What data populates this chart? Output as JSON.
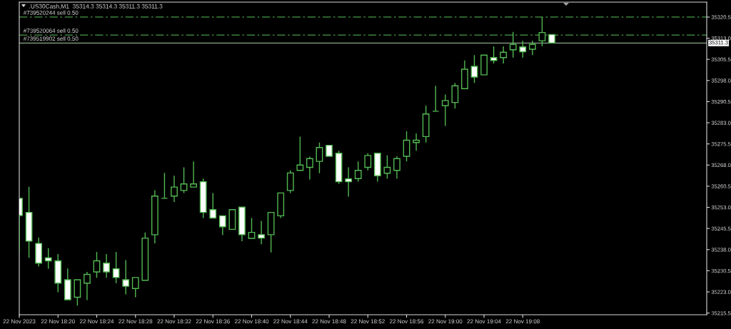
{
  "chart_data": {
    "type": "candlestick",
    "title": ".US30Cash,M1  35314.3 35314.3 35311.3 35311.3",
    "x": [
      "2023-11-22T18:16",
      "2023-11-22T18:17",
      "2023-11-22T18:18",
      "2023-11-22T18:19",
      "2023-11-22T18:20",
      "2023-11-22T18:21",
      "2023-11-22T18:22",
      "2023-11-22T18:23",
      "2023-11-22T18:24",
      "2023-11-22T18:25",
      "2023-11-22T18:26",
      "2023-11-22T18:27",
      "2023-11-22T18:28",
      "2023-11-22T18:29",
      "2023-11-22T18:30",
      "2023-11-22T18:31",
      "2023-11-22T18:32",
      "2023-11-22T18:33",
      "2023-11-22T18:34",
      "2023-11-22T18:35",
      "2023-11-22T18:36",
      "2023-11-22T18:37",
      "2023-11-22T18:38",
      "2023-11-22T18:39",
      "2023-11-22T18:40",
      "2023-11-22T18:41",
      "2023-11-22T18:42",
      "2023-11-22T18:43",
      "2023-11-22T18:44",
      "2023-11-22T18:45",
      "2023-11-22T18:46",
      "2023-11-22T18:47",
      "2023-11-22T18:48",
      "2023-11-22T18:49",
      "2023-11-22T18:50",
      "2023-11-22T18:51",
      "2023-11-22T18:52",
      "2023-11-22T18:53",
      "2023-11-22T18:54",
      "2023-11-22T18:55",
      "2023-11-22T18:56",
      "2023-11-22T18:57",
      "2023-11-22T18:58",
      "2023-11-22T18:59",
      "2023-11-22T19:00",
      "2023-11-22T19:01",
      "2023-11-22T19:02",
      "2023-11-22T19:03",
      "2023-11-22T19:04",
      "2023-11-22T19:05",
      "2023-11-22T19:06",
      "2023-11-22T19:07",
      "2023-11-22T19:08",
      "2023-11-22T19:09",
      "2023-11-22T19:10",
      "2023-11-22T19:11"
    ],
    "ohlc": [
      [
        35256.2,
        35256.2,
        35237.3,
        35250.1
      ],
      [
        35251.2,
        35260.3,
        35235.1,
        35241.0
      ],
      [
        35240.2,
        35242.3,
        35232.0,
        35233.2
      ],
      [
        35235.1,
        35238.5,
        35231.2,
        35234.0
      ],
      [
        35234.0,
        35236.4,
        35222.9,
        35226.1
      ],
      [
        35227.3,
        35231.3,
        35220.2,
        35220.2
      ],
      [
        35221.1,
        35227.3,
        35218.1,
        35227.3
      ],
      [
        35226.1,
        35230.1,
        35220.1,
        35229.2
      ],
      [
        35230.1,
        35237.2,
        35228.0,
        35234.0
      ],
      [
        35233.2,
        35236.4,
        35228.0,
        35230.1
      ],
      [
        35231.2,
        35237.2,
        35226.1,
        35228.1
      ],
      [
        35227.3,
        35234.3,
        35222.1,
        35225.0
      ],
      [
        35224.2,
        35228.1,
        35221.1,
        35228.1
      ],
      [
        35227.1,
        35244.1,
        35227.1,
        35242.1
      ],
      [
        35243.3,
        35259.1,
        35240.2,
        35257.0
      ],
      [
        35256.2,
        35265.2,
        35256.2,
        35256.2
      ],
      [
        35257.0,
        35264.2,
        35254.9,
        35260.2
      ],
      [
        35259.0,
        35267.2,
        35258.1,
        35261.3
      ],
      [
        35260.2,
        35269.3,
        35260.2,
        35261.3
      ],
      [
        35262.1,
        35263.2,
        35249.2,
        35251.2
      ],
      [
        35252.2,
        35258.1,
        35249.2,
        35249.2
      ],
      [
        35250.0,
        35250.0,
        35243.1,
        35246.1
      ],
      [
        35245.2,
        35252.2,
        35245.2,
        35252.2
      ],
      [
        35253.1,
        35253.1,
        35241.0,
        35243.3
      ],
      [
        35242.0,
        35249.2,
        35242.0,
        35244.1
      ],
      [
        35243.3,
        35248.2,
        35239.9,
        35242.1
      ],
      [
        35243.3,
        35251.2,
        35237.0,
        35251.2
      ],
      [
        35250.0,
        35258.1,
        35249.2,
        35258.1
      ],
      [
        35259.0,
        35266.1,
        35258.1,
        35265.2
      ],
      [
        35266.1,
        35278.1,
        35266.1,
        35268.0
      ],
      [
        35267.2,
        35271.0,
        35262.9,
        35270.3
      ],
      [
        35269.3,
        35276.0,
        35265.1,
        35274.2
      ],
      [
        35275.0,
        35275.0,
        35271.1,
        35271.1
      ],
      [
        35272.2,
        35273.1,
        35261.3,
        35262.1
      ],
      [
        35263.1,
        35267.2,
        35256.8,
        35262.1
      ],
      [
        35263.2,
        35269.3,
        35262.1,
        35266.1
      ],
      [
        35267.2,
        35272.2,
        35266.1,
        35271.4
      ],
      [
        35272.2,
        35272.2,
        35262.1,
        35264.2
      ],
      [
        35265.1,
        35271.4,
        35263.2,
        35267.2
      ],
      [
        35266.1,
        35271.1,
        35263.2,
        35270.3
      ],
      [
        35271.1,
        35280.0,
        35269.3,
        35276.8
      ],
      [
        35276.0,
        35279.2,
        35273.1,
        35276.8
      ],
      [
        35278.1,
        35289.1,
        35276.0,
        35286.1
      ],
      [
        35287.1,
        35296.1,
        35287.1,
        35287.1
      ],
      [
        35289.1,
        35293.0,
        35281.9,
        35290.9
      ],
      [
        35290.2,
        35297.1,
        35288.1,
        35296.1
      ],
      [
        35295.1,
        35305.1,
        35295.1,
        35302.0
      ],
      [
        35303.0,
        35307.0,
        35297.1,
        35299.2
      ],
      [
        35300.0,
        35307.0,
        35300.0,
        35307.0
      ],
      [
        35306.1,
        35310.1,
        35304.0,
        35305.1
      ],
      [
        35306.1,
        35310.1,
        35304.0,
        35308.0
      ],
      [
        35308.9,
        35315.2,
        35306.1,
        35310.8
      ],
      [
        35309.9,
        35312.1,
        35306.1,
        35308.2
      ],
      [
        35309.1,
        35312.1,
        35307.0,
        35310.8
      ],
      [
        35312.1,
        35320.5,
        35310.1,
        35315.0
      ],
      [
        35314.3,
        35314.3,
        35311.3,
        35311.3
      ]
    ],
    "color": "#52b852",
    "colors": [
      "#ffffff",
      "#ffffff",
      "#ffffff",
      "#ffffff",
      "#ffffff",
      "#ffffff",
      "#000000",
      "#000000",
      "#000000",
      "#ffffff",
      "#ffffff",
      "#ffffff",
      "#000000",
      "#000000",
      "#000000",
      "#52b852",
      "#000000",
      "#000000",
      "#000000",
      "#ffffff",
      "#ffffff",
      "#ffffff",
      "#000000",
      "#ffffff",
      "#000000",
      "#ffffff",
      "#000000",
      "#000000",
      "#000000",
      "#000000",
      "#000000",
      "#000000",
      "#ffffff",
      "#ffffff",
      "#ffffff",
      "#000000",
      "#000000",
      "#ffffff",
      "#000000",
      "#000000",
      "#000000",
      "#000000",
      "#000000",
      "#52b852",
      "#000000",
      "#000000",
      "#000000",
      "#ffffff",
      "#000000",
      "#ffffff",
      "#000000",
      "#000000",
      "#ffffff",
      "#000000",
      "#000000",
      "#ffffff"
    ],
    "xlim": [
      "2023-11-22T18:16",
      "2023-11-22T19:27"
    ],
    "xticks": [
      {
        "value": "2023-11-22T18:16",
        "label": "22 Nov 2023"
      },
      {
        "value": "2023-11-22T18:20",
        "label": "22 Nov 18:20"
      },
      {
        "value": "2023-11-22T18:24",
        "label": "22 Nov 18:24"
      },
      {
        "value": "2023-11-22T18:28",
        "label": "22 Nov 18:28"
      },
      {
        "value": "2023-11-22T18:32",
        "label": "22 Nov 18:32"
      },
      {
        "value": "2023-11-22T18:36",
        "label": "22 Nov 18:36"
      },
      {
        "value": "2023-11-22T18:40",
        "label": "22 Nov 18:40"
      },
      {
        "value": "2023-11-22T18:44",
        "label": "22 Nov 18:44"
      },
      {
        "value": "2023-11-22T18:48",
        "label": "22 Nov 18:48"
      },
      {
        "value": "2023-11-22T18:52",
        "label": "22 Nov 18:52"
      },
      {
        "value": "2023-11-22T18:56",
        "label": "22 Nov 18:56"
      },
      {
        "value": "2023-11-22T19:00",
        "label": "22 Nov 19:00"
      },
      {
        "value": "2023-11-22T19:04",
        "label": "22 Nov 19:04"
      },
      {
        "value": "2023-11-22T19:08",
        "label": "22 Nov 19:08"
      }
    ],
    "ylim": [
      35214.9,
      35325.8
    ],
    "yticks": [
      35215.5,
      {
        "value": 35223,
        "label": "35223.0"
      },
      35230.5,
      {
        "value": 35238,
        "label": "35238.0"
      },
      35245.5,
      {
        "value": 35253,
        "label": "35253.0"
      },
      35260.5,
      {
        "value": 35268,
        "label": "35268.0"
      },
      35275.5,
      {
        "value": 35283,
        "label": "35283.0"
      },
      35290.5,
      {
        "value": 35298,
        "label": "35298.0"
      },
      35305.5,
      {
        "value": 35313,
        "label": "35313.0"
      },
      35320.5
    ],
    "ref_lines": [
      {
        "axis": "y",
        "value": 35320.5,
        "label": "#739520244 sell 0.50",
        "color": "#4a9a4a",
        "line_style": "dashdot"
      },
      {
        "axis": "y",
        "value": 35314.1,
        "label": "#739520064 sell 0.50",
        "color": "#4a9a4a",
        "line_style": "dashdot"
      },
      {
        "axis": "y",
        "value": 35311.3,
        "label": "#739519902 sell 0.50",
        "color": "#8aa88a",
        "line_style": "solid"
      }
    ],
    "annotations": [
      {
        "text": "35311.3",
        "x": "2023-11-22T19:27",
        "y": 35311.3
      }
    ]
  }
}
